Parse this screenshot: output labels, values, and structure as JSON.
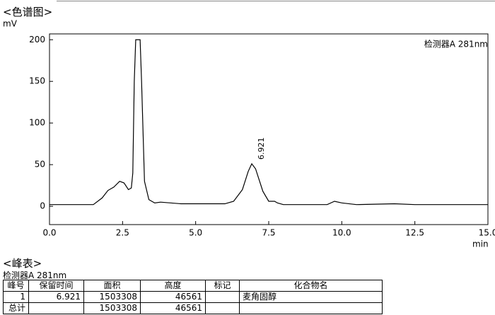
{
  "header": {
    "title": "<色谱图>"
  },
  "chart_data": {
    "type": "line",
    "y_label": "mV",
    "x_label": "min",
    "detector": "检测器A 281nm",
    "peak_label": "6.921",
    "color": "#000000",
    "x": [
      0,
      1.5,
      1.8,
      2.0,
      2.2,
      2.4,
      2.55,
      2.7,
      2.8,
      2.85,
      2.9,
      2.95,
      3.1,
      3.15,
      3.25,
      3.4,
      3.6,
      3.8,
      4.5,
      6.0,
      6.3,
      6.6,
      6.8,
      6.92,
      7.05,
      7.3,
      7.5,
      7.7,
      7.8,
      8.0,
      9.5,
      9.75,
      10.0,
      10.5,
      11.8,
      12.5,
      15.0
    ],
    "values": [
      2,
      2,
      10,
      19,
      23,
      30,
      28,
      20,
      22,
      40,
      150,
      200,
      200,
      150,
      30,
      8,
      4,
      5,
      3,
      3,
      6,
      20,
      42,
      51,
      45,
      18,
      6,
      6,
      4,
      2,
      2,
      6,
      4,
      2,
      3,
      2,
      2
    ],
    "xlim": [
      0,
      15
    ],
    "ylim": [
      -22,
      207
    ],
    "xticks": [
      {
        "value": 0,
        "label": "0.0"
      },
      2.5,
      {
        "value": 5,
        "label": "5.0"
      },
      7.5,
      {
        "value": 10,
        "label": "10.0"
      },
      12.5,
      {
        "value": 15,
        "label": "15.0"
      }
    ],
    "yticks": [
      0,
      50,
      100,
      150,
      200
    ]
  },
  "table": {
    "title": "<峰表>",
    "subtitle": "检测器A 281nm",
    "headers": [
      "峰号",
      "保留时间",
      "面积",
      "高度",
      "标记",
      "化合物名"
    ],
    "rows": [
      [
        "1",
        "6.921",
        "1503308",
        "46561",
        null,
        "麦角固醇"
      ],
      [
        "总计",
        null,
        "1503308",
        "46561",
        null,
        null
      ]
    ]
  }
}
